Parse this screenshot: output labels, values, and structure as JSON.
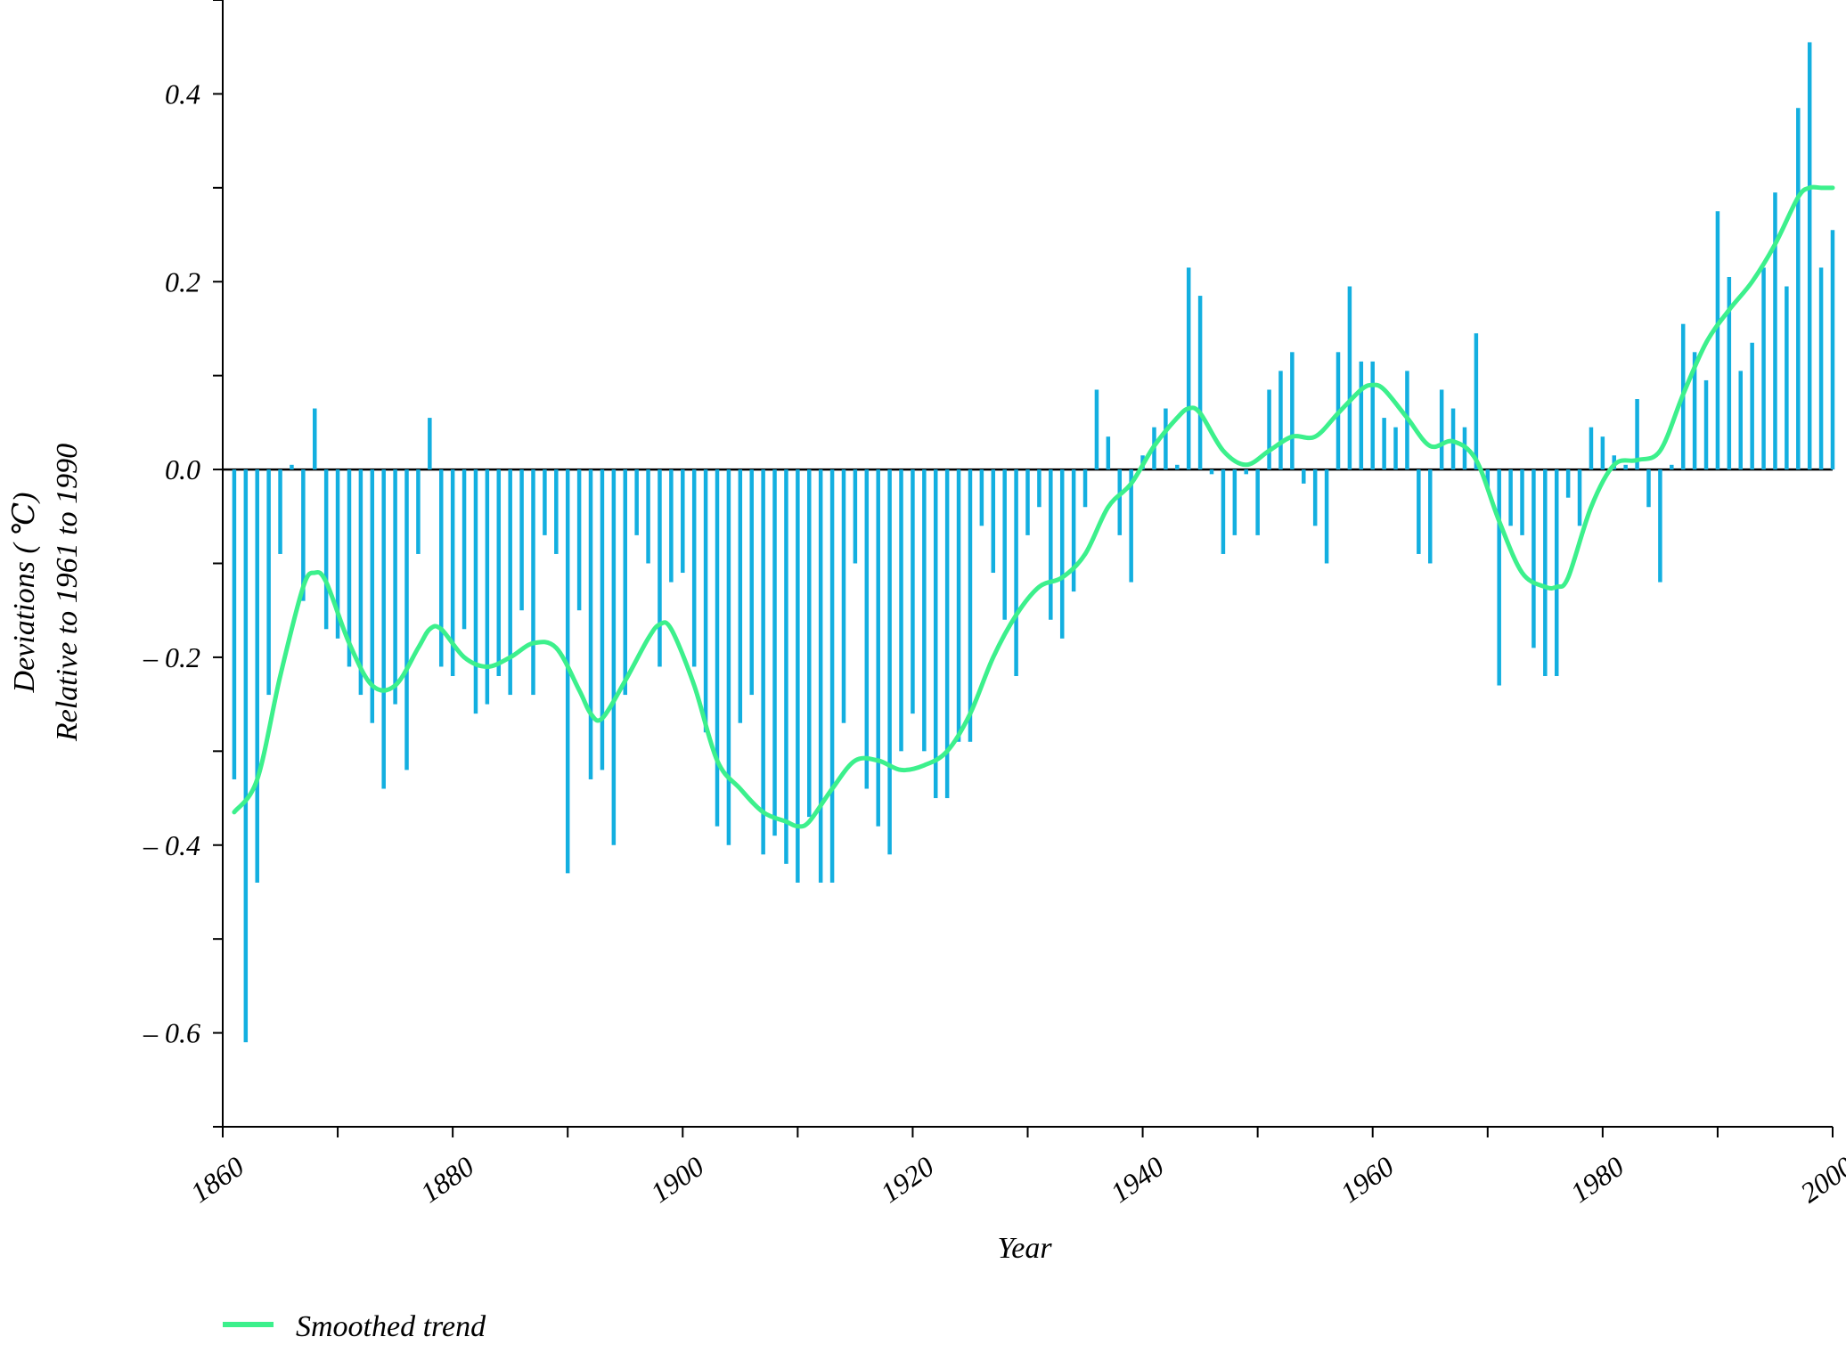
{
  "chart_data": {
    "type": "bar",
    "xlabel": "Year",
    "ylabel": "Deviations ( ℃)",
    "ylabel2": "Relative to 1961 to 1990",
    "xlim": [
      1860,
      2000
    ],
    "ylim": [
      -0.7,
      0.5
    ],
    "x_ticks": [
      1860,
      1880,
      1900,
      1920,
      1940,
      1960,
      1980,
      2000
    ],
    "x_tick_labels": [
      "1860",
      "1880",
      "1900",
      "1920",
      "1940",
      "1960",
      "1980",
      "2000"
    ],
    "y_ticks": [
      -0.6,
      -0.4,
      -0.2,
      0.0,
      0.2,
      0.4
    ],
    "y_tick_labels": [
      "– 0.6",
      "– 0.4",
      "– 0.2",
      "0.0",
      "0.2",
      "0.4"
    ],
    "bar_color": "#13afe0",
    "trend_color": "#3cf08c",
    "legend": {
      "label": "Smoothed trend",
      "position": "bottom-left"
    },
    "series": [
      {
        "type": "bar",
        "x": [
          1861,
          1862,
          1863,
          1864,
          1865,
          1866,
          1867,
          1868,
          1869,
          1870,
          1871,
          1872,
          1873,
          1874,
          1875,
          1876,
          1877,
          1878,
          1879,
          1880,
          1881,
          1882,
          1883,
          1884,
          1885,
          1886,
          1887,
          1888,
          1889,
          1890,
          1891,
          1892,
          1893,
          1894,
          1895,
          1896,
          1897,
          1898,
          1899,
          1900,
          1901,
          1902,
          1903,
          1904,
          1905,
          1906,
          1907,
          1908,
          1909,
          1910,
          1911,
          1912,
          1913,
          1914,
          1915,
          1916,
          1917,
          1918,
          1919,
          1920,
          1921,
          1922,
          1923,
          1924,
          1925,
          1926,
          1927,
          1928,
          1929,
          1930,
          1931,
          1932,
          1933,
          1934,
          1935,
          1936,
          1937,
          1938,
          1939,
          1940,
          1941,
          1942,
          1943,
          1944,
          1945,
          1946,
          1947,
          1948,
          1949,
          1950,
          1951,
          1952,
          1953,
          1954,
          1955,
          1956,
          1957,
          1958,
          1959,
          1960,
          1961,
          1962,
          1963,
          1964,
          1965,
          1966,
          1967,
          1968,
          1969,
          1970,
          1971,
          1972,
          1973,
          1974,
          1975,
          1976,
          1977,
          1978,
          1979,
          1980,
          1981,
          1982,
          1983,
          1984,
          1985,
          1986,
          1987,
          1988,
          1989,
          1990,
          1991,
          1992,
          1993,
          1994,
          1995,
          1996,
          1997,
          1998,
          1999,
          2000
        ],
        "values": [
          -0.33,
          -0.61,
          -0.44,
          -0.24,
          -0.09,
          0.005,
          -0.14,
          0.065,
          -0.17,
          -0.18,
          -0.21,
          -0.24,
          -0.27,
          -0.34,
          -0.25,
          -0.32,
          -0.09,
          0.055,
          -0.21,
          -0.22,
          -0.17,
          -0.26,
          -0.25,
          -0.22,
          -0.24,
          -0.15,
          -0.24,
          -0.07,
          -0.09,
          -0.43,
          -0.15,
          -0.33,
          -0.32,
          -0.4,
          -0.24,
          -0.07,
          -0.1,
          -0.21,
          -0.12,
          -0.11,
          -0.21,
          -0.28,
          -0.38,
          -0.4,
          -0.27,
          -0.24,
          -0.41,
          -0.39,
          -0.42,
          -0.44,
          -0.37,
          -0.44,
          -0.44,
          -0.27,
          -0.1,
          -0.34,
          -0.38,
          -0.41,
          -0.3,
          -0.26,
          -0.3,
          -0.35,
          -0.35,
          -0.29,
          -0.29,
          -0.06,
          -0.11,
          -0.16,
          -0.22,
          -0.07,
          -0.04,
          -0.16,
          -0.18,
          -0.13,
          -0.04,
          0.085,
          0.035,
          -0.07,
          -0.12,
          0.015,
          0.045,
          0.065,
          0.005,
          0.215,
          0.185,
          -0.005,
          -0.09,
          -0.07,
          -0.005,
          -0.07,
          0.085,
          0.105,
          0.125,
          -0.015,
          -0.06,
          -0.1,
          0.125,
          0.195,
          0.115,
          0.115,
          0.055,
          0.045,
          0.105,
          -0.09,
          -0.1,
          0.085,
          0.065,
          0.045,
          0.145,
          -0.02,
          -0.23,
          -0.06,
          -0.07,
          -0.19,
          -0.22,
          -0.22,
          -0.03,
          -0.06,
          0.045,
          0.035,
          0.015,
          0.005,
          0.075,
          -0.04,
          -0.12,
          0.005,
          0.155,
          0.125,
          0.095,
          0.275,
          0.205,
          0.105,
          0.135,
          0.215,
          0.295,
          0.195,
          0.385,
          0.455,
          0.215,
          0.255
        ]
      },
      {
        "type": "line",
        "name": "Smoothed trend",
        "x": [
          1861,
          1863,
          1865,
          1867,
          1868,
          1869,
          1871,
          1873,
          1875,
          1877,
          1878,
          1879,
          1881,
          1883,
          1885,
          1887,
          1889,
          1891,
          1892,
          1893,
          1895,
          1897,
          1898,
          1899,
          1901,
          1903,
          1905,
          1907,
          1909,
          1910,
          1911,
          1913,
          1915,
          1917,
          1919,
          1921,
          1923,
          1925,
          1927,
          1929,
          1931,
          1933,
          1935,
          1937,
          1939,
          1941,
          1943,
          1944,
          1945,
          1947,
          1949,
          1951,
          1953,
          1955,
          1957,
          1959,
          1960,
          1961,
          1963,
          1965,
          1967,
          1969,
          1971,
          1973,
          1975,
          1976,
          1977,
          1979,
          1981,
          1983,
          1985,
          1987,
          1989,
          1991,
          1993,
          1995,
          1997,
          1998,
          1999,
          2000
        ],
        "values": [
          -0.365,
          -0.33,
          -0.22,
          -0.125,
          -0.11,
          -0.12,
          -0.185,
          -0.23,
          -0.23,
          -0.19,
          -0.17,
          -0.17,
          -0.2,
          -0.21,
          -0.2,
          -0.185,
          -0.19,
          -0.235,
          -0.26,
          -0.265,
          -0.225,
          -0.18,
          -0.165,
          -0.17,
          -0.23,
          -0.31,
          -0.34,
          -0.365,
          -0.375,
          -0.38,
          -0.375,
          -0.34,
          -0.31,
          -0.31,
          -0.32,
          -0.315,
          -0.3,
          -0.26,
          -0.2,
          -0.155,
          -0.125,
          -0.115,
          -0.09,
          -0.04,
          -0.015,
          0.025,
          0.055,
          0.065,
          0.06,
          0.02,
          0.005,
          0.02,
          0.035,
          0.035,
          0.06,
          0.085,
          0.09,
          0.085,
          0.055,
          0.025,
          0.03,
          0.01,
          -0.055,
          -0.11,
          -0.125,
          -0.125,
          -0.115,
          -0.04,
          0.005,
          0.01,
          0.02,
          0.08,
          0.135,
          0.17,
          0.2,
          0.24,
          0.29,
          0.3,
          0.3,
          0.3
        ]
      }
    ]
  }
}
